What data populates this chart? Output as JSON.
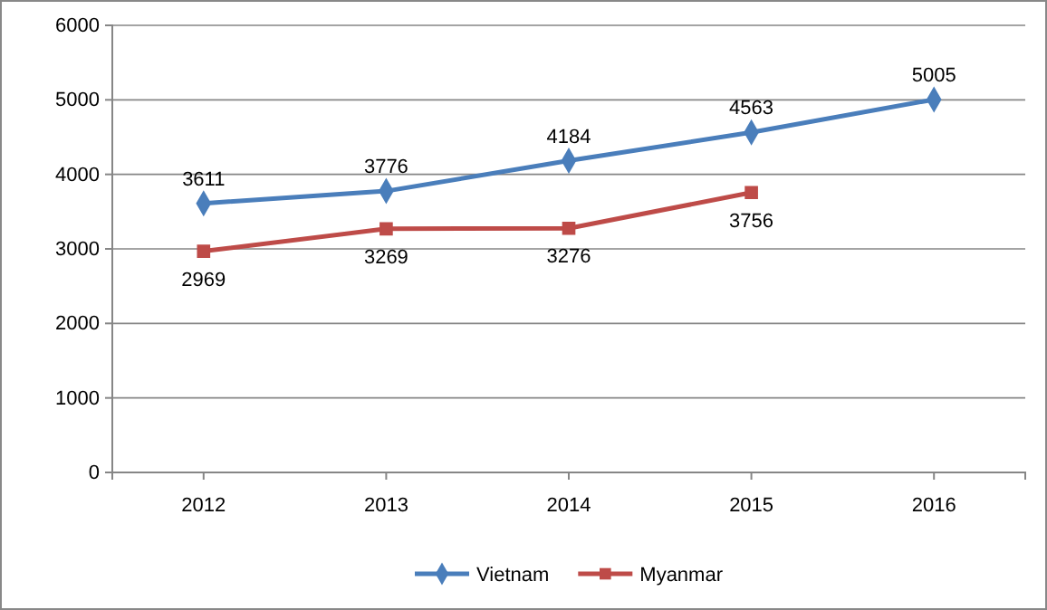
{
  "chart_data": {
    "type": "line",
    "categories": [
      "2012",
      "2013",
      "2014",
      "2015",
      "2016"
    ],
    "series": [
      {
        "name": "Vietnam",
        "color": "#4a7ebb",
        "marker": "diamond",
        "values": [
          3611,
          3776,
          4184,
          4563,
          5005
        ]
      },
      {
        "name": "Myanmar",
        "color": "#be4b48",
        "marker": "square",
        "values": [
          2969,
          3269,
          3276,
          3756,
          null
        ]
      }
    ],
    "ylim": [
      0,
      6000
    ],
    "yticks": [
      0,
      1000,
      2000,
      3000,
      4000,
      5000,
      6000
    ],
    "grid": "y",
    "legend": "bottom",
    "data_labels": true,
    "line_style": "solid"
  }
}
